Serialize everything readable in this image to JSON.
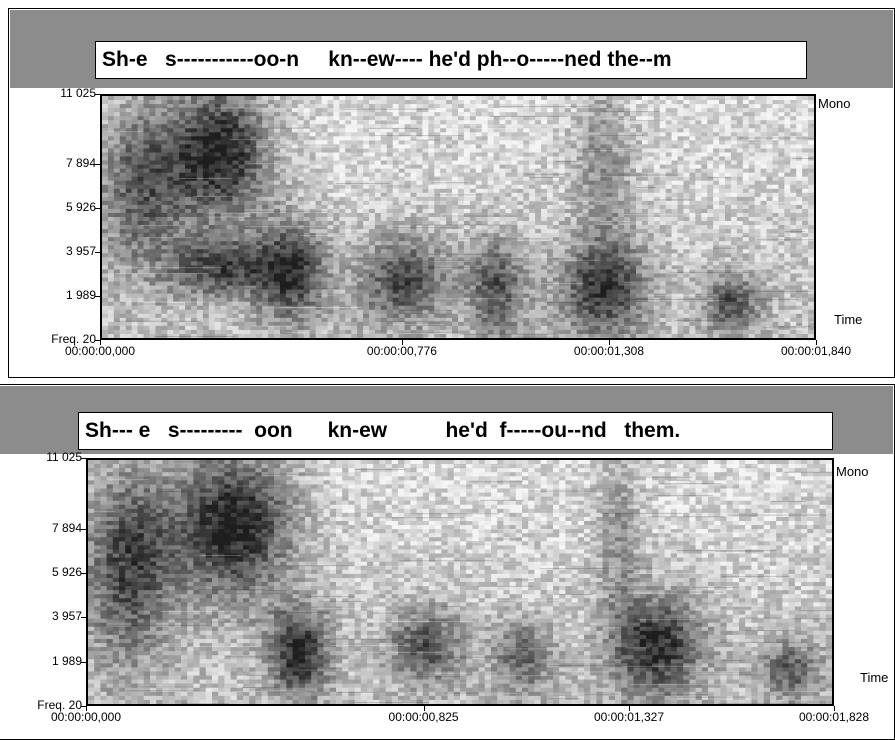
{
  "chart_data": [
    {
      "type": "heatmap",
      "title": "Sh-e   s-----------oo-n     kn--ew---- he'd ph--o-----ned the--m",
      "y_ticks": [
        "11 025",
        "7 894",
        "5 926",
        "3 957",
        "1 989",
        "Freq. 20"
      ],
      "y_values": [
        11025,
        7894,
        5926,
        3957,
        1989,
        20
      ],
      "x_ticks": [
        "00:00:00,000",
        "00:00:00,776",
        "00:00:01,308",
        "00:00:01,840"
      ],
      "x_values": [
        0.0,
        0.776,
        1.308,
        1.84
      ],
      "channel_label": "Mono",
      "time_label": "Time",
      "ylim": [
        20,
        11025
      ],
      "xlim": [
        0.0,
        1.84
      ]
    },
    {
      "type": "heatmap",
      "title": "Sh--- e   s---------  oon      kn-ew          he'd  f-----ou--nd   them.",
      "y_ticks": [
        "11 025",
        "7 894",
        "5 926",
        "3 957",
        "1 989",
        "Freq. 20"
      ],
      "y_values": [
        11025,
        7894,
        5926,
        3957,
        1989,
        20
      ],
      "x_ticks": [
        "00:00:00,000",
        "00:00:00,825",
        "00:00:01,327",
        "00:00:01,828"
      ],
      "x_values": [
        0.0,
        0.825,
        1.327,
        1.828
      ],
      "channel_label": "Mono",
      "time_label": "Time",
      "ylim": [
        20,
        11025
      ],
      "xlim": [
        0.0,
        1.828
      ]
    }
  ]
}
